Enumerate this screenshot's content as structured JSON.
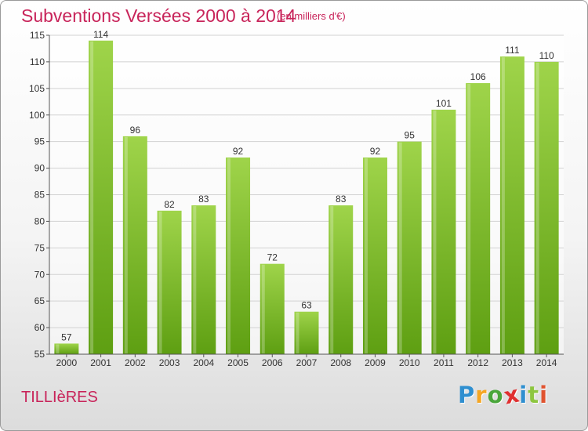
{
  "title": "Subventions Versées 2000 à 2014",
  "subtitle": "(en milliers d'€)",
  "place": "TILLIèRES",
  "logo": {
    "letters": [
      "P",
      "r",
      "o",
      "x",
      "i",
      "t",
      "i"
    ],
    "colors": [
      "#2f8fd0",
      "#f5a623",
      "#4aa63b",
      "#e03030",
      "#2f8fd0",
      "#8dc63f",
      "#e0532f"
    ]
  },
  "colors": {
    "bar_top": "#9fd44a",
    "bar_bottom": "#5e9f12",
    "text_accent": "#c8245a"
  },
  "chart_data": {
    "type": "bar",
    "categories": [
      "2000",
      "2001",
      "2002",
      "2003",
      "2004",
      "2005",
      "2006",
      "2007",
      "2008",
      "2009",
      "2010",
      "2011",
      "2012",
      "2013",
      "2014"
    ],
    "values": [
      57,
      114,
      96,
      82,
      83,
      92,
      72,
      63,
      83,
      92,
      95,
      101,
      106,
      111,
      110
    ],
    "yticks": [
      55,
      60,
      65,
      70,
      75,
      80,
      85,
      90,
      95,
      100,
      105,
      110,
      115
    ],
    "ylim": [
      55,
      115
    ],
    "title": "Subventions Versées 2000 à 2014",
    "ylabel": "",
    "xlabel": "",
    "grid": true,
    "data_labels": true
  }
}
